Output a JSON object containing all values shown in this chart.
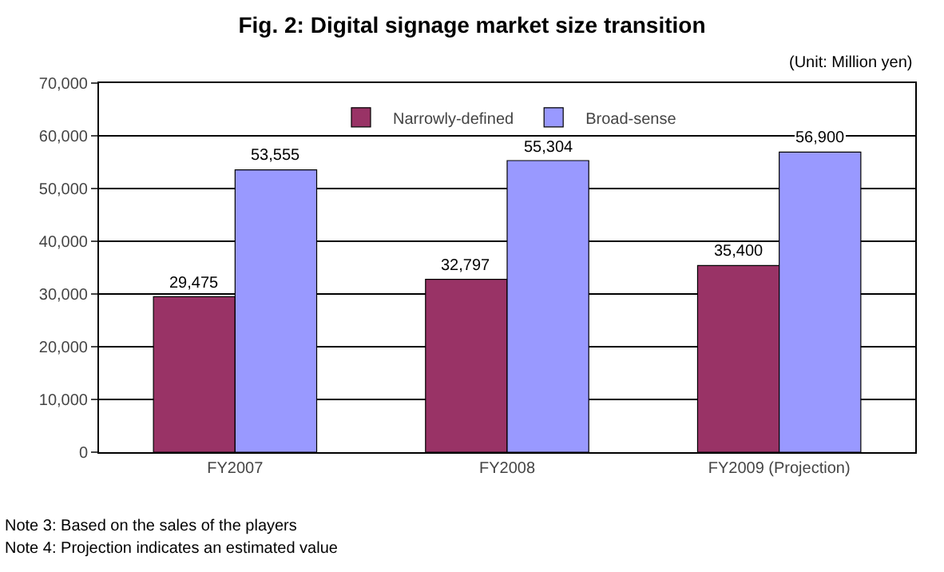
{
  "chart_data": {
    "type": "bar",
    "title": "Fig. 2: Digital signage market size transition",
    "categories": [
      "FY2007",
      "FY2008",
      "FY2009 (Projection)"
    ],
    "series": [
      {
        "name": "Narrowly-defined",
        "color": "#993366",
        "values": [
          29475,
          32797,
          35400
        ],
        "value_labels": [
          "29,475",
          "32,797",
          "35,400"
        ]
      },
      {
        "name": "Broad-sense",
        "color": "#9999ff",
        "values": [
          53555,
          55304,
          56900
        ],
        "value_labels": [
          "53,555",
          "55,304",
          "56,900"
        ]
      }
    ],
    "ylim": [
      0,
      70000
    ],
    "yticks": [
      0,
      {
        "value": 10000,
        "label": "10,000"
      },
      {
        "value": 20000,
        "label": "20,000"
      },
      {
        "value": 30000,
        "label": "30,000"
      },
      {
        "value": 40000,
        "label": "40,000"
      },
      {
        "value": 50000,
        "label": "50,000"
      },
      {
        "value": 60000,
        "label": "60,000"
      },
      {
        "value": 70000,
        "label": "70,000"
      }
    ],
    "grid": "y",
    "legend": "top",
    "annotations": [
      "(Unit: Million yen)",
      "Note 3: Based on the sales of the players",
      "Note 4: Projection indicates an estimated value"
    ]
  }
}
